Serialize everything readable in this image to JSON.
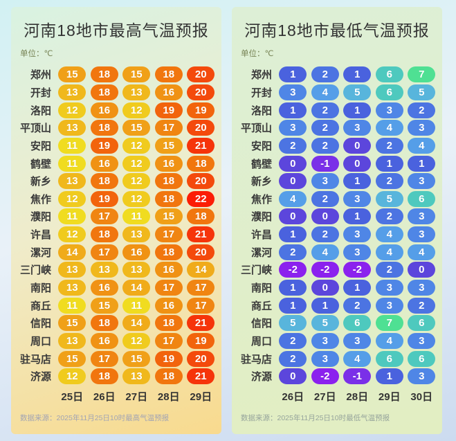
{
  "chart_data": [
    {
      "type": "heatmap",
      "title": "河南18地市最高气温预报",
      "unit_label": "单位：℃",
      "columns": [
        "25日",
        "26日",
        "27日",
        "28日",
        "29日"
      ],
      "rows": [
        {
          "city": "郑州",
          "values": [
            15,
            18,
            15,
            18,
            20
          ]
        },
        {
          "city": "开封",
          "values": [
            13,
            18,
            13,
            16,
            20
          ]
        },
        {
          "city": "洛阳",
          "values": [
            12,
            16,
            12,
            19,
            19
          ]
        },
        {
          "city": "平顶山",
          "values": [
            13,
            18,
            15,
            17,
            20
          ]
        },
        {
          "city": "安阳",
          "values": [
            11,
            19,
            12,
            15,
            21
          ]
        },
        {
          "city": "鹤壁",
          "values": [
            11,
            16,
            12,
            16,
            18
          ]
        },
        {
          "city": "新乡",
          "values": [
            13,
            18,
            12,
            18,
            20
          ]
        },
        {
          "city": "焦作",
          "values": [
            12,
            19,
            12,
            18,
            22
          ]
        },
        {
          "city": "濮阳",
          "values": [
            11,
            17,
            11,
            15,
            18
          ]
        },
        {
          "city": "许昌",
          "values": [
            12,
            18,
            13,
            17,
            21
          ]
        },
        {
          "city": "漯河",
          "values": [
            14,
            17,
            16,
            18,
            20
          ]
        },
        {
          "city": "三门峡",
          "values": [
            13,
            13,
            13,
            16,
            14
          ]
        },
        {
          "city": "南阳",
          "values": [
            13,
            16,
            14,
            17,
            17
          ]
        },
        {
          "city": "商丘",
          "values": [
            11,
            15,
            11,
            16,
            17
          ]
        },
        {
          "city": "信阳",
          "values": [
            15,
            18,
            14,
            18,
            21
          ]
        },
        {
          "city": "周口",
          "values": [
            13,
            16,
            12,
            17,
            19
          ]
        },
        {
          "city": "驻马店",
          "values": [
            15,
            17,
            15,
            19,
            20
          ]
        },
        {
          "city": "济源",
          "values": [
            12,
            18,
            13,
            18,
            21
          ]
        }
      ],
      "source": "数据来源：2025年11月25日10时最高气温预报",
      "value_range": [
        11,
        22
      ],
      "colors": {
        "11": "#f0dc20",
        "12": "#f0cb1e",
        "13": "#f0b81c",
        "14": "#f0ab1a",
        "15": "#f0a018",
        "16": "#f09214",
        "17": "#f08512",
        "18": "#f1760e",
        "19": "#f2640c",
        "20": "#f44a0c",
        "21": "#f6340a",
        "22": "#fc1d06"
      }
    },
    {
      "type": "heatmap",
      "title": "河南18地市最低气温预报",
      "unit_label": "单位：℃",
      "columns": [
        "26日",
        "27日",
        "28日",
        "29日",
        "30日"
      ],
      "rows": [
        {
          "city": "郑州",
          "values": [
            1,
            2,
            1,
            6,
            7
          ]
        },
        {
          "city": "开封",
          "values": [
            3,
            4,
            5,
            6,
            5
          ]
        },
        {
          "city": "洛阳",
          "values": [
            1,
            2,
            1,
            3,
            2
          ]
        },
        {
          "city": "平顶山",
          "values": [
            3,
            2,
            3,
            4,
            3
          ]
        },
        {
          "city": "安阳",
          "values": [
            2,
            2,
            0,
            2,
            4
          ]
        },
        {
          "city": "鹤壁",
          "values": [
            0,
            -1,
            0,
            1,
            1
          ]
        },
        {
          "city": "新乡",
          "values": [
            0,
            3,
            1,
            2,
            3
          ]
        },
        {
          "city": "焦作",
          "values": [
            4,
            2,
            3,
            5,
            6
          ]
        },
        {
          "city": "濮阳",
          "values": [
            0,
            0,
            1,
            2,
            3
          ]
        },
        {
          "city": "许昌",
          "values": [
            1,
            2,
            3,
            4,
            3
          ]
        },
        {
          "city": "漯河",
          "values": [
            2,
            4,
            3,
            4,
            4
          ]
        },
        {
          "city": "三门峡",
          "values": [
            -2,
            -2,
            -2,
            2,
            0
          ]
        },
        {
          "city": "南阳",
          "values": [
            1,
            0,
            1,
            3,
            3
          ]
        },
        {
          "city": "商丘",
          "values": [
            1,
            1,
            2,
            3,
            2
          ]
        },
        {
          "city": "信阳",
          "values": [
            5,
            5,
            6,
            7,
            6
          ]
        },
        {
          "city": "周口",
          "values": [
            2,
            3,
            3,
            4,
            3
          ]
        },
        {
          "city": "驻马店",
          "values": [
            2,
            3,
            4,
            6,
            6
          ]
        },
        {
          "city": "济源",
          "values": [
            0,
            -2,
            -1,
            1,
            3
          ]
        }
      ],
      "source": "数据来源：2025年11月25日10时最低气温预报",
      "value_range": [
        -2,
        7
      ],
      "colors": {
        "-2": "#8b21ee",
        "-1": "#7a30e8",
        "0": "#5c46dc",
        "1": "#4a62de",
        "2": "#4c74e2",
        "3": "#4f86e6",
        "4": "#559ee8",
        "5": "#58b5dc",
        "6": "#4ec9be",
        "7": "#4fe093"
      }
    }
  ]
}
